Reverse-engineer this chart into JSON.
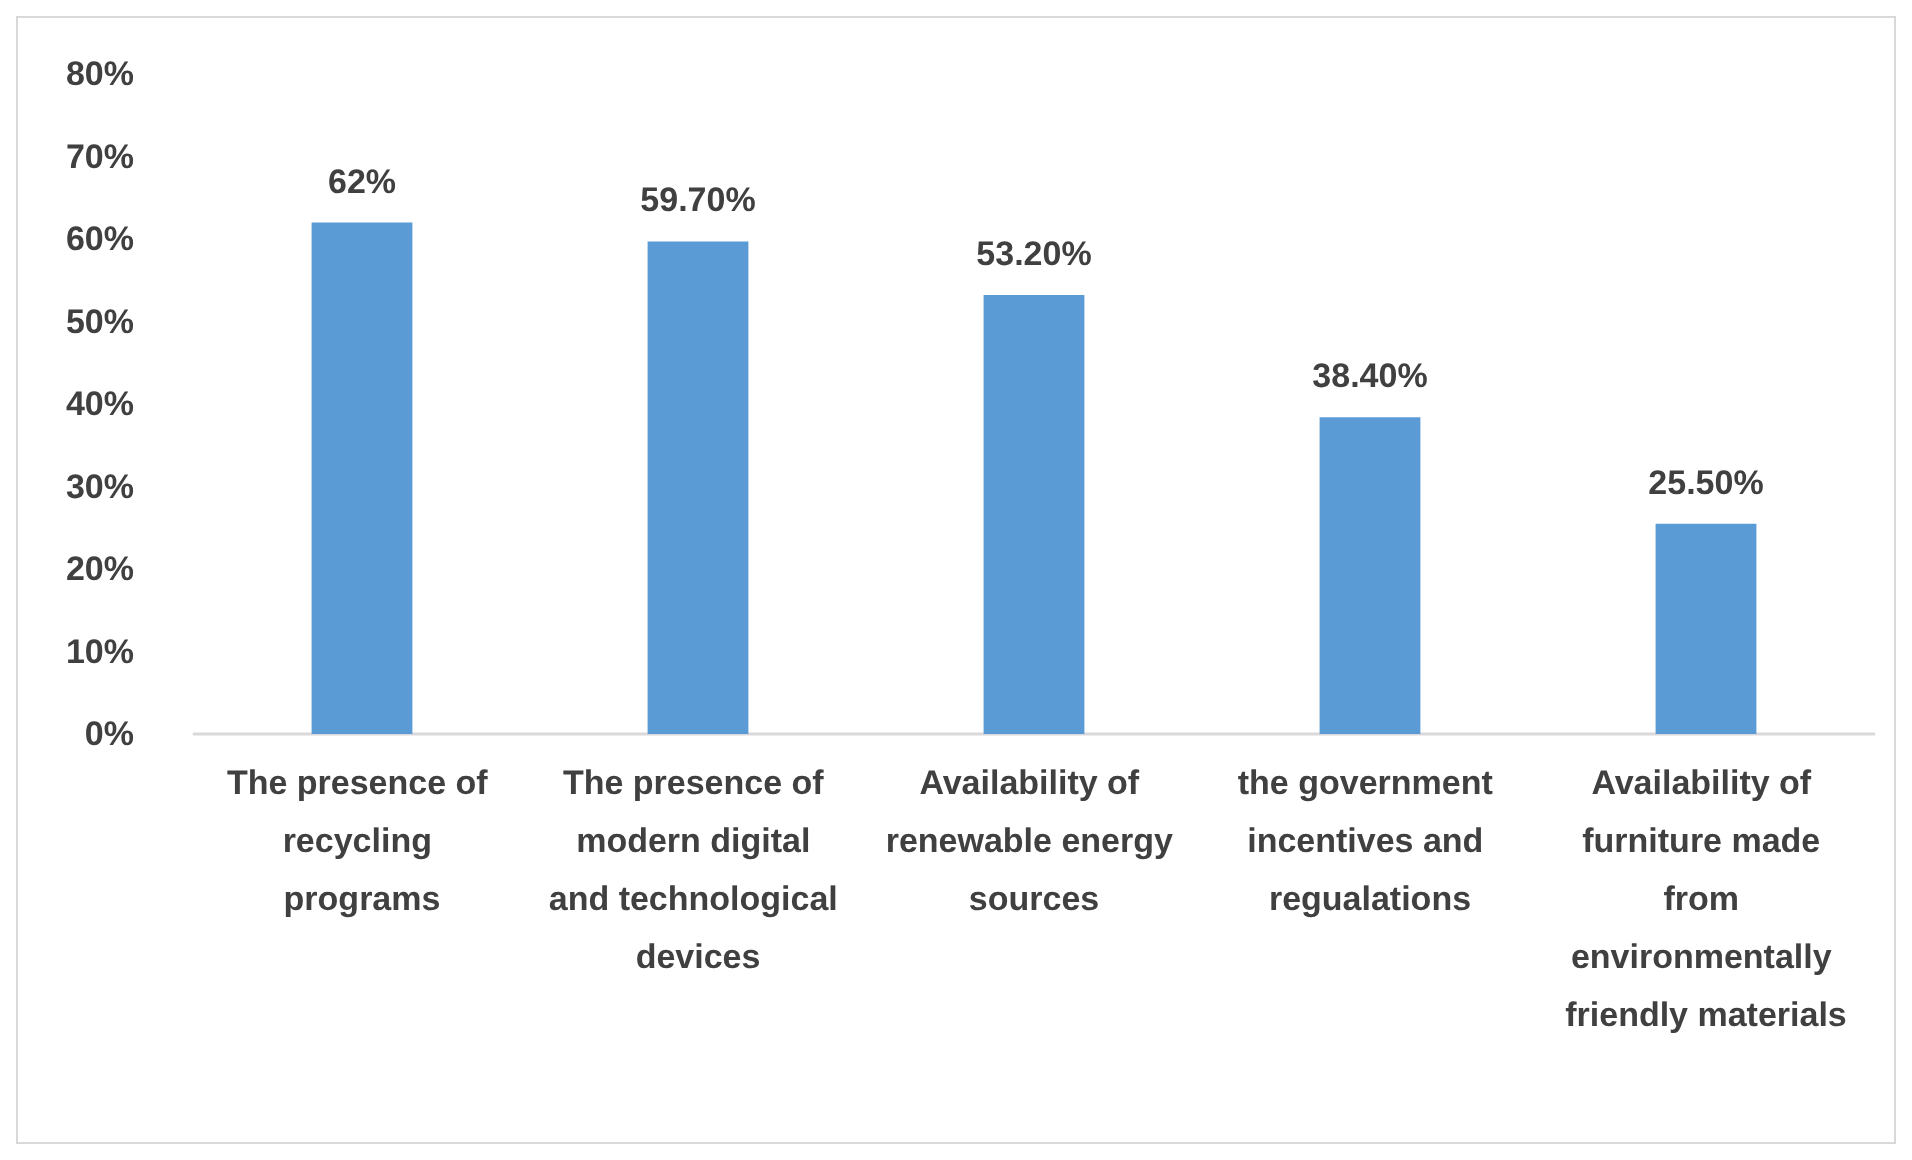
{
  "chart_data": {
    "type": "bar",
    "categories": [
      "The presence of recycling programs",
      "The presence of modern digital and technological devices",
      "Availability of renewable energy sources",
      "the government incentives and regualations",
      "Availability of furniture made from environmentally friendly materials"
    ],
    "values": [
      62,
      59.7,
      53.2,
      38.4,
      25.5
    ],
    "value_labels": [
      "62%",
      "59.70%",
      "53.20%",
      "38.40%",
      "25.50%"
    ],
    "color": "#5b9bd5",
    "ylim": [
      0,
      80
    ],
    "yticks": [
      {
        "value": 0,
        "label": "0%"
      },
      {
        "value": 10,
        "label": "10%"
      },
      {
        "value": 20,
        "label": "20%"
      },
      {
        "value": 30,
        "label": "30%"
      },
      {
        "value": 40,
        "label": "40%"
      },
      {
        "value": 50,
        "label": "50%"
      },
      {
        "value": 60,
        "label": "60%"
      },
      {
        "value": 70,
        "label": "70%"
      },
      {
        "value": 80,
        "label": "80%"
      }
    ],
    "grid": false
  }
}
